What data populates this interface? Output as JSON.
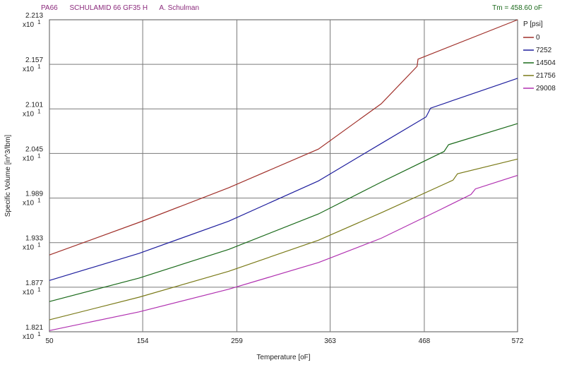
{
  "header": {
    "material": "PA66",
    "grade": "SCHULAMID 66 GF35 H",
    "supplier": "A. Schulman",
    "tm_text": "Tm = 458.60 oF"
  },
  "chart_data": {
    "type": "line",
    "xlabel": "Temperature [oF]",
    "ylabel": "Specific Volume [in^3/lbm]",
    "xlim": [
      50,
      572
    ],
    "ylim": [
      1.821,
      2.213
    ],
    "y_multiplier_label": "x10",
    "y_multiplier_exp": "1",
    "x_ticks": [
      "50",
      "154",
      "259",
      "363",
      "468",
      "572"
    ],
    "x_tick_values": [
      50,
      154,
      259,
      363,
      468,
      572
    ],
    "y_ticks": [
      "2.213",
      "2.157",
      "2.101",
      "2.045",
      "1.989",
      "1.933",
      "1.877",
      "1.821"
    ],
    "y_tick_values": [
      2.213,
      2.157,
      2.101,
      2.045,
      1.989,
      1.933,
      1.877,
      1.821
    ],
    "grid": true,
    "legend_title": "P [psi]",
    "legend_position": "right",
    "series": [
      {
        "name": "0",
        "color": "#a0302a",
        "points": [
          [
            50,
            1.9175
          ],
          [
            150,
            1.9585
          ],
          [
            250,
            2.002
          ],
          [
            350,
            2.0505
          ],
          [
            420,
            2.1075
          ],
          [
            460,
            2.1545
          ],
          [
            461,
            2.1635
          ],
          [
            572,
            2.213
          ]
        ]
      },
      {
        "name": "7252",
        "color": "#1f1f9e",
        "points": [
          [
            50,
            1.8855
          ],
          [
            150,
            1.9195
          ],
          [
            250,
            1.96
          ],
          [
            350,
            2.0105
          ],
          [
            420,
            2.0575
          ],
          [
            470,
            2.091
          ],
          [
            475,
            2.102
          ],
          [
            572,
            2.1395
          ]
        ]
      },
      {
        "name": "14504",
        "color": "#1a6a1a",
        "points": [
          [
            50,
            1.859
          ],
          [
            150,
            1.8885
          ],
          [
            250,
            1.9245
          ],
          [
            350,
            1.969
          ],
          [
            420,
            2.009
          ],
          [
            490,
            2.0475
          ],
          [
            495,
            2.056
          ],
          [
            572,
            2.0825
          ]
        ]
      },
      {
        "name": "21756",
        "color": "#7a7a18",
        "points": [
          [
            50,
            1.836
          ],
          [
            150,
            1.8645
          ],
          [
            250,
            1.897
          ],
          [
            350,
            1.936
          ],
          [
            420,
            1.9705
          ],
          [
            500,
            2.0115
          ],
          [
            505,
            2.0195
          ],
          [
            572,
            2.038
          ]
        ]
      },
      {
        "name": "29008",
        "color": "#b030b0",
        "points": [
          [
            50,
            1.8225
          ],
          [
            150,
            1.846
          ],
          [
            250,
            1.8745
          ],
          [
            350,
            1.908
          ],
          [
            420,
            1.9385
          ],
          [
            485,
            1.974
          ],
          [
            520,
            1.9935
          ],
          [
            525,
            2.0005
          ],
          [
            572,
            2.0175
          ]
        ]
      }
    ]
  }
}
